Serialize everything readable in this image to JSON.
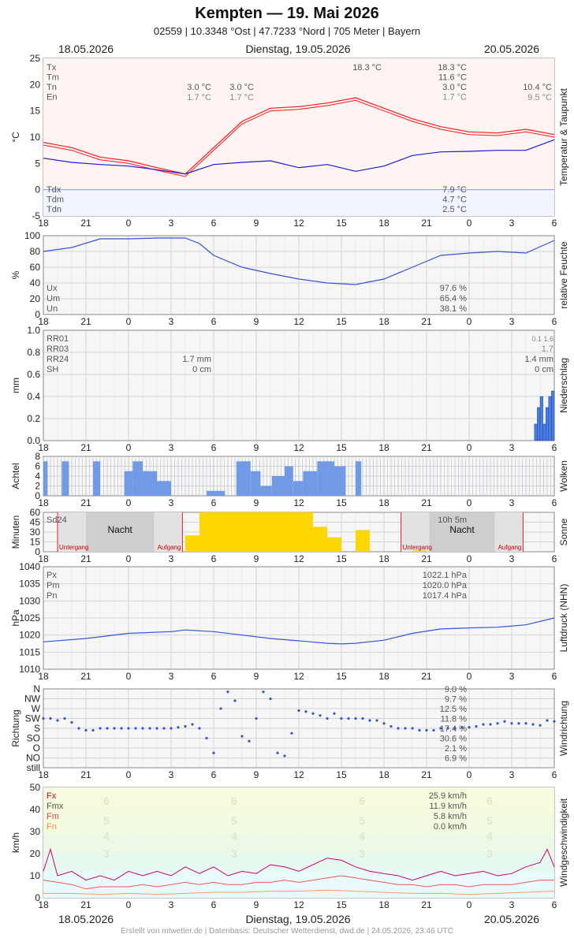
{
  "header": {
    "title": "Kempten  —  19. Mai 2026",
    "subtitle": "02559  |  10.3348 °Ost  |  47.7233 °Nord  |  705 Meter  |  Bayern"
  },
  "dates": {
    "left": "18.05.2026",
    "center": "Dienstag, 19.05.2026",
    "right": "20.05.2026"
  },
  "footer": "Erstellt von mtwetter.de | Datenbasis: Deutscher Wetterdienst, dwd.de | 24.05.2026, 23:46 UTC",
  "x_axis": {
    "ticks": [
      "18",
      "21",
      "0",
      "3",
      "6",
      "9",
      "12",
      "15",
      "18",
      "21",
      "0",
      "3",
      "6"
    ]
  },
  "colors": {
    "temp": "#ff1a1a",
    "dew": "#1a1ad9",
    "line": "#3355dd",
    "bars": "#4a7fe0",
    "clouds": "#6a96e6",
    "sun": "#ffd700",
    "gust": "#cc0066",
    "fm": "#ee5555",
    "fn": "#ff9966"
  },
  "chart_data": [
    {
      "type": "line",
      "panel": "temperature",
      "ylabel": "°C",
      "side_label": "Temperatur & Taupunkt",
      "ylim": [
        -5,
        25
      ],
      "yticks": [
        "25",
        "20",
        "15",
        "10",
        "5",
        "0",
        "-5"
      ],
      "annotations": {
        "left": [
          "Tx",
          "Tm",
          "Tn",
          "En"
        ],
        "day1": {
          "Tn": "3.0 °C",
          "En": "1.7 °C"
        },
        "day1b": {
          "Tn": "3.0 °C",
          "En": "1.7 °C"
        },
        "max_mark": "18.3 °C",
        "day2": {
          "Tx": "18.3 °C",
          "Tm": "11.6 °C",
          "Tn": "3.0 °C",
          "En": "1.7 °C"
        },
        "day3": {
          "Tn": "10.4 °C",
          "En": "9.5 °C"
        },
        "dew_left": [
          "Tdx",
          "Tdm",
          "Tdn"
        ],
        "dew_values": {
          "Tdx": "7.9 °C",
          "Tdm": "4.7 °C",
          "Tdn": "2.5 °C"
        }
      },
      "series": [
        {
          "key": "T",
          "x": [
            0,
            2,
            4,
            6,
            8,
            10,
            12,
            14,
            16,
            18,
            20,
            22,
            24,
            26,
            28,
            30,
            32,
            34,
            36
          ],
          "y": [
            9,
            8,
            6.2,
            5.5,
            4.2,
            3.0,
            8,
            13,
            15.5,
            15.8,
            16.5,
            17.5,
            15.5,
            13.5,
            12,
            11,
            10.8,
            11.5,
            10.5
          ]
        },
        {
          "key": "Td",
          "x": [
            0,
            2,
            4,
            6,
            8,
            10,
            12,
            14,
            16,
            18,
            20,
            22,
            24,
            26,
            28,
            30,
            32,
            34,
            36
          ],
          "y": [
            6,
            5.2,
            4.8,
            4.5,
            3.8,
            3.0,
            4.8,
            5.2,
            5.5,
            4.2,
            4.8,
            3.5,
            4.5,
            6.5,
            7.2,
            7.3,
            7.5,
            7.5,
            9.5
          ]
        }
      ]
    },
    {
      "type": "line",
      "panel": "humidity",
      "ylabel": "%",
      "side_label": "relative Feuchte",
      "ylim": [
        0,
        100
      ],
      "yticks": [
        "100",
        "80",
        "60",
        "40",
        "20",
        "0"
      ],
      "annotations": {
        "left": [
          "Ux",
          "Um",
          "Un"
        ],
        "values": {
          "Ux": "97.6 %",
          "Um": "65.4 %",
          "Un": "38.1 %"
        }
      },
      "series": [
        {
          "key": "U",
          "x": [
            0,
            2,
            4,
            6,
            8,
            10,
            11,
            12,
            14,
            16,
            18,
            20,
            22,
            24,
            26,
            28,
            30,
            32,
            34,
            36
          ],
          "y": [
            80,
            85,
            96,
            96,
            97,
            97,
            90,
            75,
            60,
            52,
            45,
            40,
            38,
            45,
            60,
            75,
            78,
            80,
            78,
            94
          ]
        }
      ]
    },
    {
      "type": "bar",
      "panel": "precipitation",
      "ylabel": "mm",
      "side_label": "Niederschlag",
      "ylim": [
        0,
        1.0
      ],
      "yticks": [
        "1.0",
        "0.8",
        "0.6",
        "0.4",
        "0.2",
        "0.0"
      ],
      "annotations": {
        "left": [
          "RR01",
          "RR03",
          "RR24",
          "SH"
        ],
        "day1": {
          "RR24": "1.7 mm",
          "SH": "0 cm"
        },
        "day2": {
          "top": "0.1  1.6",
          "RR03": "1.7",
          "RR24": "1.4 mm",
          "SH": "0 cm"
        }
      },
      "x": [
        34.7,
        34.9,
        35.1,
        35.3,
        35.5,
        35.7,
        35.9
      ],
      "values": [
        0.15,
        0.3,
        0.4,
        0.15,
        0.3,
        0.4,
        0.45
      ]
    },
    {
      "type": "bar",
      "panel": "clouds",
      "ylabel": "Achtel",
      "side_label": "Wolken",
      "ylim": [
        0,
        8
      ],
      "yticks": [
        "8",
        "6",
        "4",
        "2",
        "0"
      ],
      "segments": [
        [
          0,
          0.3,
          7
        ],
        [
          1.3,
          1.8,
          7
        ],
        [
          3.5,
          4.0,
          7
        ],
        [
          5.7,
          6.3,
          5
        ],
        [
          6.3,
          7.0,
          7
        ],
        [
          7.0,
          8.0,
          5
        ],
        [
          8.0,
          9.0,
          3
        ],
        [
          9.0,
          11.5,
          0
        ],
        [
          11.5,
          12.8,
          1
        ],
        [
          13.6,
          14.6,
          7
        ],
        [
          14.6,
          15.3,
          5
        ],
        [
          15.3,
          16.1,
          2
        ],
        [
          16.1,
          17.0,
          4
        ],
        [
          17.0,
          17.6,
          6
        ],
        [
          17.6,
          18.3,
          3
        ],
        [
          18.3,
          19.3,
          5
        ],
        [
          19.3,
          20.5,
          7
        ],
        [
          20.5,
          21.3,
          6
        ],
        [
          22.0,
          22.4,
          7
        ]
      ]
    },
    {
      "type": "bar",
      "panel": "sunshine",
      "ylabel": "Minuten",
      "side_label": "Sonne",
      "ylim": [
        0,
        60
      ],
      "yticks": [
        "60",
        "45",
        "30",
        "15",
        "0"
      ],
      "annotations": {
        "sd": "Sd24",
        "sd_value": "10h 5m",
        "night": "Nacht",
        "sunset": "Untergang",
        "sunrise": "Aufgang"
      },
      "x": [
        10,
        11,
        12,
        13,
        14,
        15,
        16,
        17,
        18,
        19,
        20,
        21,
        22,
        24,
        26
      ],
      "values": [
        25,
        60,
        60,
        60,
        60,
        60,
        60,
        60,
        60,
        38,
        22,
        0,
        33,
        0,
        2
      ]
    },
    {
      "type": "line",
      "panel": "pressure",
      "ylabel": "hPa",
      "side_label": "Luftdruck (NHN)",
      "ylim": [
        1010,
        1040
      ],
      "yticks": [
        "1040",
        "1035",
        "1030",
        "1025",
        "1020",
        "1015",
        "1010"
      ],
      "annotations": {
        "left": [
          "Px",
          "Pm",
          "Pn"
        ],
        "values": {
          "Px": "1022.1 hPa",
          "Pm": "1020.0 hPa",
          "Pn": "1017.4 hPa"
        }
      },
      "series": [
        {
          "key": "P",
          "x": [
            0,
            3,
            6,
            9,
            10,
            12,
            14,
            16,
            18,
            20,
            21,
            22,
            24,
            26,
            28,
            30,
            32,
            34,
            36
          ],
          "y": [
            1018,
            1019,
            1020.5,
            1021,
            1021.5,
            1021,
            1020,
            1019,
            1018.3,
            1017.6,
            1017.4,
            1017.6,
            1018.5,
            1020.5,
            1021.8,
            1022.1,
            1022.3,
            1023,
            1025
          ]
        }
      ]
    },
    {
      "type": "scatter",
      "panel": "wind_direction",
      "ylabel": "Richtung",
      "side_label": "Windrichtung",
      "yticks": [
        "N",
        "NW",
        "W",
        "SW",
        "S",
        "SO",
        "O",
        "NO",
        "still"
      ],
      "annotations": {
        "values": [
          "9.0 %",
          "9.7 %",
          "12.5 %",
          "11.8 %",
          "17.4 %",
          "30.6 %",
          "2.1 %",
          "6.9 %"
        ]
      },
      "x": [
        0,
        0.5,
        1,
        1.5,
        2,
        2.5,
        3,
        3.5,
        4,
        4.5,
        5,
        5.5,
        6,
        6.5,
        7,
        7.5,
        8,
        8.5,
        9,
        9.5,
        10,
        10.5,
        11,
        11.5,
        12,
        12.5,
        13,
        13.5,
        14,
        14.5,
        15,
        15.5,
        16,
        16.5,
        17,
        17.5,
        18,
        18.5,
        19,
        19.5,
        20,
        20.5,
        21,
        21.5,
        22,
        22.5,
        23,
        23.5,
        24,
        24.5,
        25,
        25.5,
        26,
        26.5,
        27,
        27.5,
        28,
        28.5,
        29,
        29.5,
        30,
        30.5,
        31,
        31.5,
        32,
        32.5,
        33,
        33.5,
        34,
        34.5,
        35,
        35.5,
        36
      ],
      "y": [
        3,
        3,
        3.2,
        3,
        3.4,
        4,
        4.2,
        4.2,
        4.0,
        4.0,
        4.0,
        4.0,
        4.0,
        4.0,
        4.0,
        4.0,
        4.0,
        4.0,
        4.0,
        3.9,
        3.8,
        3.6,
        4.0,
        5,
        6.5,
        2,
        0.3,
        1.2,
        4.8,
        5.3,
        3,
        0.3,
        1.0,
        6.5,
        6.8,
        4.5,
        2.2,
        2.3,
        2.5,
        2.7,
        3,
        2.5,
        3,
        3,
        3,
        3,
        3.2,
        3.2,
        3.5,
        3.8,
        4,
        4,
        4,
        4.2,
        4.2,
        4.2,
        4,
        4,
        4,
        3.9,
        3.9,
        3.8,
        3.6,
        3.6,
        3.5,
        3.3,
        3.5,
        3.5,
        3.5,
        3.6,
        3.7,
        3.2,
        3.3
      ]
    },
    {
      "type": "line",
      "panel": "wind_speed",
      "ylabel": "km/h",
      "side_label": "Windgeschwindigkeit",
      "ylim": [
        0,
        50
      ],
      "yticks": [
        "50",
        "40",
        "30",
        "20",
        "10",
        "0"
      ],
      "beaufort": [
        "6",
        "5",
        "4",
        "3"
      ],
      "annotations": {
        "left": [
          "Fx",
          "Fmx",
          "Fm",
          "Fn"
        ],
        "values": {
          "Fx": "25.9 km/h",
          "Fmx": "11.9 km/h",
          "Fm": "5.8 km/h",
          "Fn": "0.0 km/h"
        }
      },
      "series": [
        {
          "key": "Fx",
          "x": [
            0,
            0.5,
            1,
            2,
            3,
            4,
            5,
            6,
            7,
            8,
            9,
            10,
            11,
            12,
            13,
            14,
            15,
            16,
            17,
            18,
            19,
            20,
            21,
            22,
            23,
            24,
            25,
            26,
            27,
            28,
            29,
            30,
            31,
            32,
            33,
            34,
            35,
            35.5,
            36
          ],
          "y": [
            12,
            22,
            10,
            12,
            8,
            10,
            8,
            12,
            10,
            12,
            10,
            14,
            11,
            14,
            10,
            12,
            11,
            15,
            14,
            12,
            15,
            18,
            17,
            14,
            12,
            11,
            10,
            8,
            10,
            12,
            10,
            11,
            12,
            10,
            11,
            14,
            16,
            22,
            14
          ]
        },
        {
          "key": "Fm",
          "x": [
            0,
            1,
            2,
            3,
            4,
            5,
            6,
            7,
            8,
            9,
            10,
            11,
            12,
            13,
            14,
            15,
            16,
            17,
            18,
            19,
            20,
            21,
            22,
            23,
            24,
            25,
            26,
            27,
            28,
            29,
            30,
            31,
            32,
            33,
            34,
            35,
            36
          ],
          "y": [
            8,
            7,
            6,
            4,
            5,
            5,
            5,
            6,
            5,
            6,
            7,
            6,
            7,
            6,
            6,
            7,
            7,
            8,
            7,
            8,
            9,
            10,
            9,
            8,
            7,
            6,
            6,
            5,
            6,
            6,
            5,
            6,
            6,
            6,
            7,
            8,
            8
          ]
        },
        {
          "key": "Fn",
          "x": [
            0,
            2,
            4,
            6,
            8,
            10,
            12,
            14,
            16,
            18,
            20,
            22,
            24,
            26,
            28,
            30,
            32,
            34,
            36
          ],
          "y": [
            2,
            2,
            1.5,
            2,
            1.5,
            2,
            2.5,
            2.5,
            3,
            3,
            3.5,
            3,
            2.5,
            2,
            2,
            1.5,
            2,
            2.5,
            3
          ]
        }
      ]
    }
  ]
}
